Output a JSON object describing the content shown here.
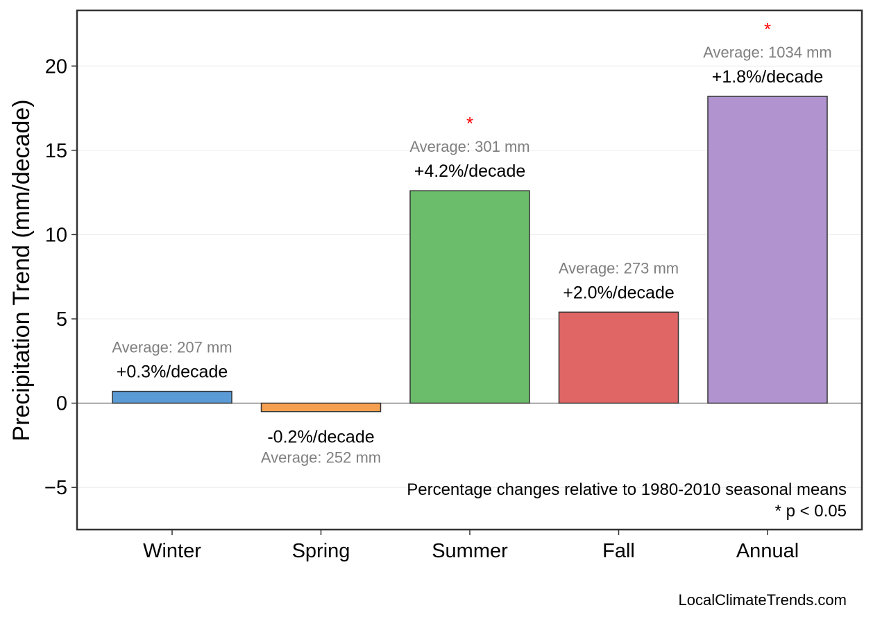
{
  "chart_data": {
    "type": "bar",
    "categories": [
      "Winter",
      "Spring",
      "Summer",
      "Fall",
      "Annual"
    ],
    "values": [
      0.7,
      -0.5,
      12.6,
      5.4,
      18.2
    ],
    "pct_labels": [
      "+0.3%/decade",
      "-0.2%/decade",
      "+4.2%/decade",
      "+2.0%/decade",
      "+1.8%/decade"
    ],
    "avg_labels": [
      "Average: 207 mm",
      "Average: 252 mm",
      "Average: 301 mm",
      "Average: 273 mm",
      "Average: 1034 mm"
    ],
    "significant": [
      false,
      false,
      true,
      false,
      true
    ],
    "significance_marker": "*",
    "colors": [
      "#5b9bd5",
      "#f5a050",
      "#6bbd6b",
      "#e06666",
      "#b194cf"
    ],
    "ylabel": "Precipitation Trend (mm/decade)",
    "ylim": [
      -7.5,
      23.3
    ],
    "yticks": [
      -5,
      0,
      5,
      10,
      15,
      20
    ],
    "ytick_labels": [
      "−5",
      "0",
      "5",
      "10",
      "15",
      "20"
    ],
    "grid": true,
    "notes": [
      "Percentage changes relative to 1980-2010 seasonal means",
      "* p < 0.05"
    ],
    "credit": "LocalClimateTrends.com"
  }
}
